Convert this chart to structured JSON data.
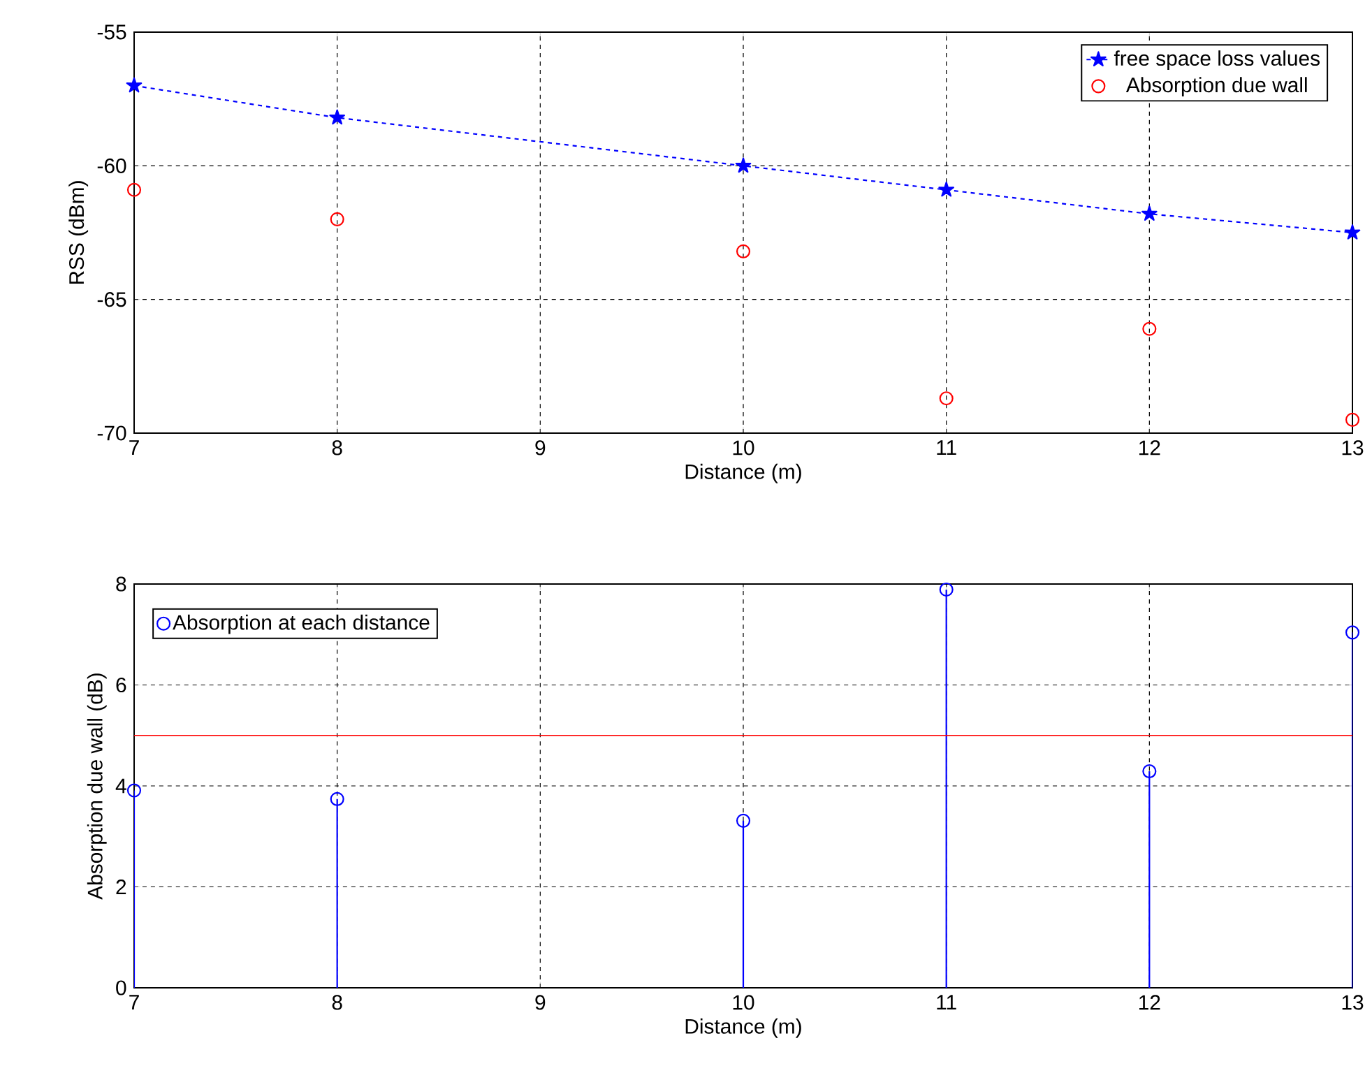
{
  "chart_data": [
    {
      "type": "line",
      "xlabel": "Distance (m)",
      "ylabel": "RSS (dBm)",
      "xlim": [
        7,
        13
      ],
      "ylim": [
        -70,
        -55
      ],
      "xticks": [
        7,
        8,
        9,
        10,
        11,
        12,
        13
      ],
      "yticks": [
        -70,
        -65,
        -60,
        -55
      ],
      "grid": true,
      "legend": "top right",
      "series": [
        {
          "name": "free space loss values",
          "type": "line",
          "color": "#0000ff",
          "marker": "star",
          "line_style": "dashed",
          "x": [
            7,
            8,
            10,
            11,
            12,
            13
          ],
          "values": [
            -57.0,
            -58.2,
            -60.0,
            -60.9,
            -61.8,
            -62.5
          ]
        },
        {
          "name": "Absorption due wall",
          "type": "scatter",
          "color": "#ff0000",
          "marker": "circle",
          "x": [
            7,
            8,
            10,
            11,
            12,
            13
          ],
          "values": [
            -60.9,
            -62.0,
            -63.2,
            -68.7,
            -66.1,
            -69.5
          ]
        }
      ]
    },
    {
      "type": "lollipop",
      "xlabel": "Distance (m)",
      "ylabel": "Absorption due wall (dB)",
      "xlim": [
        7,
        13
      ],
      "ylim": [
        0,
        8
      ],
      "xticks": [
        7,
        8,
        9,
        10,
        11,
        12,
        13
      ],
      "yticks": [
        0,
        2,
        4,
        6,
        8
      ],
      "grid": true,
      "legend": "top left",
      "series": [
        {
          "name": "Absorption at each distance",
          "color": "#0000ff",
          "marker": "circle",
          "x": [
            7,
            8,
            10,
            11,
            12,
            13
          ],
          "values": [
            3.91,
            3.74,
            3.31,
            7.89,
            4.29,
            7.04
          ]
        }
      ],
      "ref_lines": [
        {
          "axis": "y",
          "value": 5.0,
          "color": "#ff0000"
        }
      ]
    }
  ]
}
